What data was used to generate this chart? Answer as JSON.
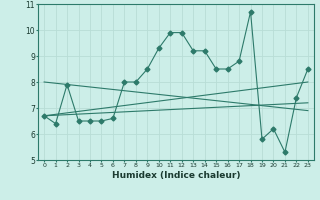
{
  "xlabel": "Humidex (Indice chaleur)",
  "ylabel": "",
  "background_color": "#cceee8",
  "grid_color": "#b8ddd6",
  "line_color": "#2d7a6a",
  "x_ticks": [
    0,
    1,
    2,
    3,
    4,
    5,
    6,
    7,
    8,
    9,
    10,
    11,
    12,
    13,
    14,
    15,
    16,
    17,
    18,
    19,
    20,
    21,
    22,
    23
  ],
  "ylim": [
    5,
    11
  ],
  "xlim": [
    -0.5,
    23.5
  ],
  "series1_x": [
    0,
    1,
    2,
    3,
    4,
    5,
    6,
    7,
    8,
    9,
    10,
    11,
    12,
    13,
    14,
    15,
    16,
    17,
    18,
    19,
    20,
    21,
    22,
    23
  ],
  "series1_y": [
    6.7,
    6.4,
    7.9,
    6.5,
    6.5,
    6.5,
    6.6,
    8.0,
    8.0,
    8.5,
    9.3,
    9.9,
    9.9,
    9.2,
    9.2,
    8.5,
    8.5,
    8.8,
    10.7,
    5.8,
    6.2,
    5.3,
    7.4,
    8.5
  ],
  "series2_x": [
    0,
    23
  ],
  "series2_y": [
    6.7,
    7.2
  ],
  "series3_x": [
    0,
    23
  ],
  "series3_y": [
    8.0,
    6.9
  ],
  "series4_x": [
    0,
    23
  ],
  "series4_y": [
    6.7,
    8.0
  ],
  "ytick_labels": [
    "5",
    "6",
    "7",
    "8",
    "9",
    "10",
    "11"
  ],
  "yticks": [
    5,
    6,
    7,
    8,
    9,
    10,
    11
  ]
}
